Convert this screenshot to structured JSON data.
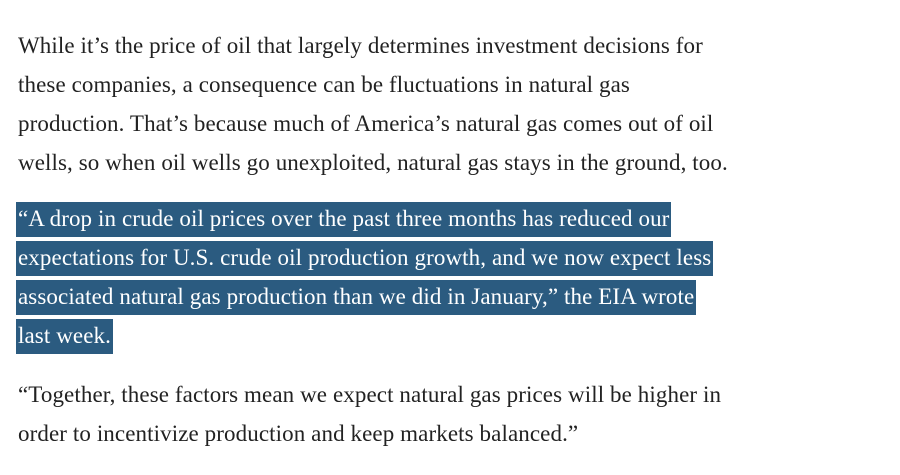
{
  "article": {
    "paragraphs": [
      {
        "lines": [
          "While it’s the price of oil that largely determines investment decisions for",
          "these companies, a consequence can be fluctuations in natural gas",
          "production. That’s because much of America’s natural gas comes out of oil",
          "wells, so when oil wells go unexploited, natural gas stays in the ground, too."
        ]
      },
      {
        "selected": true,
        "lines": [
          "“A drop in crude oil prices over the past three months has reduced our",
          "expectations for U.S. crude oil production growth, and we now expect less",
          "associated natural gas production than we did in January,” the EIA wrote",
          "last week."
        ]
      },
      {
        "lines": [
          "“Together, these factors mean we expect natural gas prices will be higher in",
          "order to incentivize production and keep markets balanced.”"
        ]
      }
    ],
    "selection_color": "#2b5b80",
    "text_color": "#222222"
  }
}
